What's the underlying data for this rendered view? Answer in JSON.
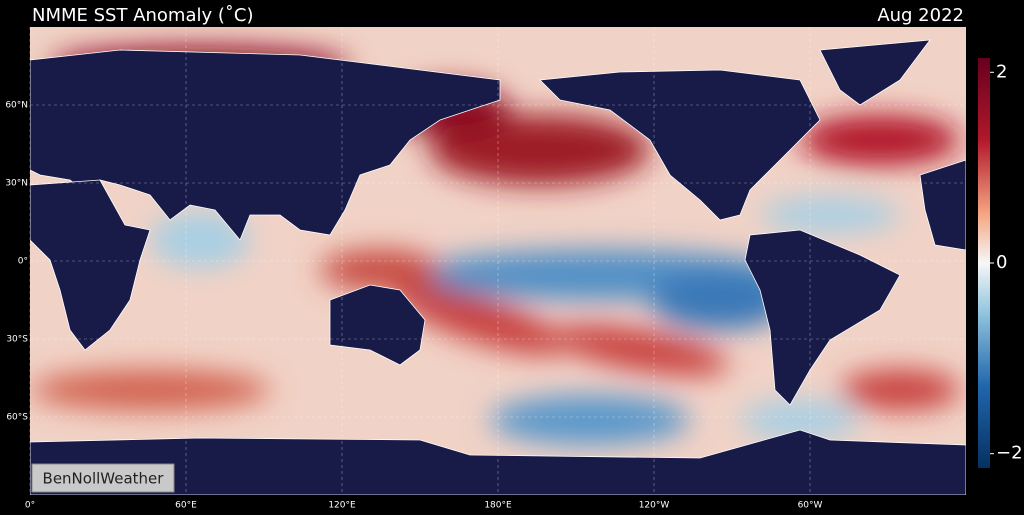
{
  "title": "NMME SST Anomaly (˚C)",
  "date": "Aug 2022",
  "watermark": "BenNollWeather",
  "map_extent": {
    "lon": [
      0,
      360
    ],
    "lat": [
      -90,
      90
    ]
  },
  "lat_ticks": [
    {
      "value": 60,
      "label": "60°N"
    },
    {
      "value": 30,
      "label": "30°N"
    },
    {
      "value": 0,
      "label": "0°"
    },
    {
      "value": -30,
      "label": "30°S"
    },
    {
      "value": -60,
      "label": "60°S"
    }
  ],
  "lon_ticks": [
    {
      "value": 0,
      "label": "0°"
    },
    {
      "value": 60,
      "label": "60°E"
    },
    {
      "value": 120,
      "label": "120°E"
    },
    {
      "value": 180,
      "label": "180°E"
    },
    {
      "value": 240,
      "label": "120°W"
    },
    {
      "value": 300,
      "label": "60°W"
    }
  ],
  "colorbar": {
    "lim": [
      -2.15,
      2.15
    ],
    "ticks": [
      2,
      0,
      {
        "value": -2,
        "label": "−2"
      }
    ]
  }
}
